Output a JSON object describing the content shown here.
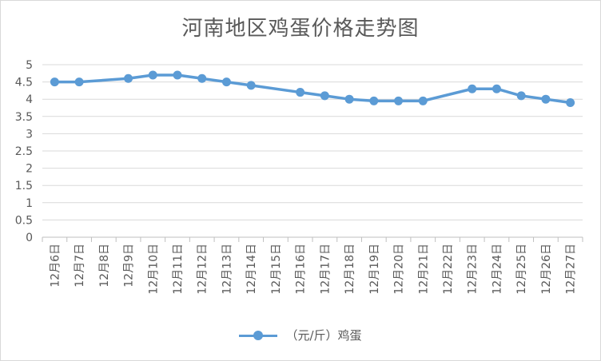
{
  "chart_data": {
    "type": "line",
    "title": "河南地区鸡蛋价格走势图",
    "xlabel": "",
    "ylabel": "",
    "categories": [
      "12月6日",
      "12月7日",
      "12月8日",
      "12月9日",
      "12月10日",
      "12月11日",
      "12月12日",
      "12月13日",
      "12月14日",
      "12月15日",
      "12月16日",
      "12月17日",
      "12月18日",
      "12月19日",
      "12月20日",
      "12月21日",
      "12月22日",
      "12月23日",
      "12月24日",
      "12月25日",
      "12月26日",
      "12月27日"
    ],
    "series": [
      {
        "name": "（元/斤）鸡蛋",
        "color": "#5b9bd5",
        "points": [
          [
            "12月6日",
            4.5
          ],
          [
            "12月7日",
            4.5
          ],
          [
            "12月9日",
            4.6
          ],
          [
            "12月10日",
            4.7
          ],
          [
            "12月11日",
            4.7
          ],
          [
            "12月12日",
            4.6
          ],
          [
            "12月13日",
            4.5
          ],
          [
            "12月14日",
            4.4
          ],
          [
            "12月16日",
            4.2
          ],
          [
            "12月17日",
            4.1
          ],
          [
            "12月18日",
            4.0
          ],
          [
            "12月19日",
            3.95
          ],
          [
            "12月20日",
            3.95
          ],
          [
            "12月21日",
            3.95
          ],
          [
            "12月23日",
            4.3
          ],
          [
            "12月24日",
            4.3
          ],
          [
            "12月25日",
            4.1
          ],
          [
            "12月26日",
            4.0
          ],
          [
            "12月27日",
            3.9
          ]
        ]
      }
    ],
    "yticks": [
      "0",
      "0.5",
      "1",
      "1.5",
      "2",
      "2.5",
      "3",
      "3.5",
      "4",
      "4.5",
      "5"
    ],
    "ylim": [
      0,
      5
    ],
    "grid": true,
    "legend_position": "bottom"
  }
}
